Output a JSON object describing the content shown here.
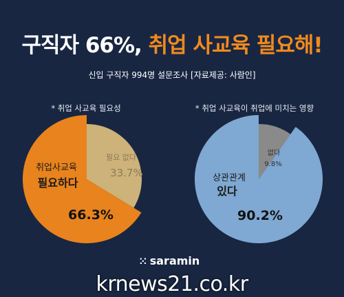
{
  "header": {
    "title_white": "구직자 66%,",
    "title_orange": "취업 사교육 필요해!",
    "subtitle": "신입 구직자 994명 설문조사 [자료제공: 사람인]"
  },
  "chart_data": [
    {
      "type": "pie",
      "title": "* 취업 사교육 필요성",
      "slices": [
        {
          "label_line1": "취업사교육",
          "label_line2": "필요하다",
          "value": 66.3,
          "value_text": "66.3%",
          "color": "#e8831d"
        },
        {
          "label_line1": "필요 없다",
          "label_line2": "",
          "value": 33.7,
          "value_text": "33.7%",
          "color": "#cdb27a"
        }
      ]
    },
    {
      "type": "pie",
      "title": "* 취업 사교육이 취업에 미치는 영향",
      "slices": [
        {
          "label_line1": "상관관계",
          "label_line2": "있다",
          "value": 90.2,
          "value_text": "90.2%",
          "color": "#7fa8d2"
        },
        {
          "label_line1": "없다",
          "label_line2": "",
          "value": 9.8,
          "value_text": "9.8%",
          "color": "#8a8a8a"
        }
      ]
    }
  ],
  "footer": {
    "logo_text": "saramin",
    "watermark": "krnews21.co.kr"
  }
}
